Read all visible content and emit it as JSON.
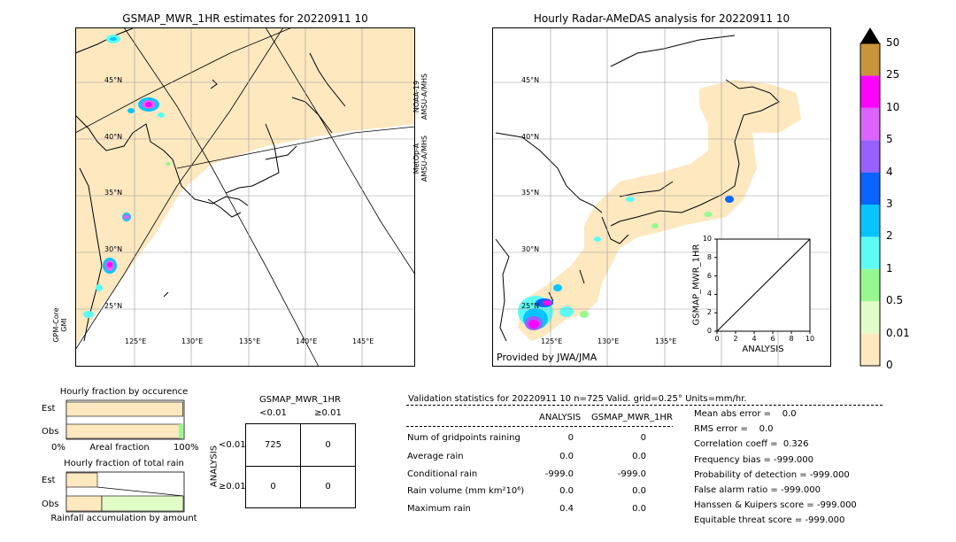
{
  "left_map": {
    "title": "GSMAP_MWR_1HR estimates for 20220911 10",
    "lat_labels": [
      "45°N",
      "40°N",
      "35°N",
      "30°N",
      "25°N"
    ],
    "lon_labels": [
      "125°E",
      "130°E",
      "135°E",
      "140°E",
      "145°E"
    ],
    "sat_label_1": "NOAA-19\nAMSU-A/MHS",
    "sat_label_2": "MetOp-A\nAMSU-A/MHS",
    "sat_label_3": "GPM-Core\nGMI"
  },
  "right_map": {
    "title": "Hourly Radar-AMeDAS analysis for 20220911 10",
    "lat_labels": [
      "45°N",
      "40°N",
      "35°N",
      "30°N",
      "25°N"
    ],
    "lon_labels": [
      "125°E",
      "130°E",
      "135°E"
    ],
    "provider": "Provided by JWA/JMA"
  },
  "colorbar": {
    "levels": [
      "0",
      "0.01",
      "0.5",
      "1",
      "2",
      "3",
      "4",
      "5",
      "10",
      "25",
      "50"
    ],
    "colors": [
      "#fde8c0",
      "#e2fcc8",
      "#98f890",
      "#5cfcf4",
      "#08c4fc",
      "#0a64fc",
      "#9860fc",
      "#dc64fc",
      "#fc04fc",
      "#c8943c",
      "#000000"
    ]
  },
  "chart_data": [
    {
      "type": "scatter",
      "title": "",
      "xlabel": "ANALYSIS",
      "ylabel": "GSMAP_MWR_1HR",
      "xlim": [
        0,
        10
      ],
      "ylim": [
        0,
        10
      ],
      "x_ticks": [
        "0",
        "2",
        "4",
        "6",
        "8",
        "10"
      ],
      "y_ticks": [
        "0",
        "2",
        "4",
        "6",
        "8",
        "10"
      ],
      "points": [],
      "diagonal": true
    },
    {
      "type": "bar",
      "title": "Hourly fraction by occurence",
      "categories": [
        "Est",
        "Obs"
      ],
      "values": [
        0.99,
        0.98
      ],
      "xlabel": "Areal fraction",
      "x_ticks": [
        "0%",
        "100%"
      ]
    },
    {
      "type": "bar",
      "title": "Hourly fraction of total rain",
      "categories": [
        "Est",
        "Obs"
      ],
      "values": [
        0.0,
        0.0
      ],
      "xlabel": "Rainfall accumulation by amount"
    }
  ],
  "contingency": {
    "title": "GSMAP_MWR_1HR",
    "col_labels": [
      "<0.01",
      "≥0.01"
    ],
    "row_labels": [
      "<0.01",
      "≥0.01"
    ],
    "side_label": "ANALYSIS",
    "cells": [
      "725",
      "0",
      "0",
      "0"
    ]
  },
  "validation": {
    "header": "Validation statistics for 20220911 10  n=725 Valid. grid=0.25° Units=mm/hr.",
    "col_analysis": "ANALYSIS",
    "col_gsmap": "GSMAP_MWR_1HR",
    "rows": [
      {
        "label": "Num of gridpoints raining",
        "a": "0",
        "g": "0"
      },
      {
        "label": "Average rain",
        "a": "0.0",
        "g": "0.0"
      },
      {
        "label": "Conditional rain",
        "a": "-999.0",
        "g": "-999.0"
      },
      {
        "label": "Rain volume (mm km²10⁶)",
        "a": "0.0",
        "g": "0.0"
      },
      {
        "label": "Maximum rain",
        "a": "0.4",
        "g": "0.0"
      }
    ],
    "scores": [
      "Mean abs error =    0.0",
      "RMS error =    0.0",
      "Correlation coeff =  0.326",
      "Frequency bias = -999.000",
      "Probability of detection = -999.000",
      "False alarm ratio = -999.000",
      "Hanssen & Kuipers score = -999.000",
      "Equitable threat score = -999.000"
    ]
  }
}
